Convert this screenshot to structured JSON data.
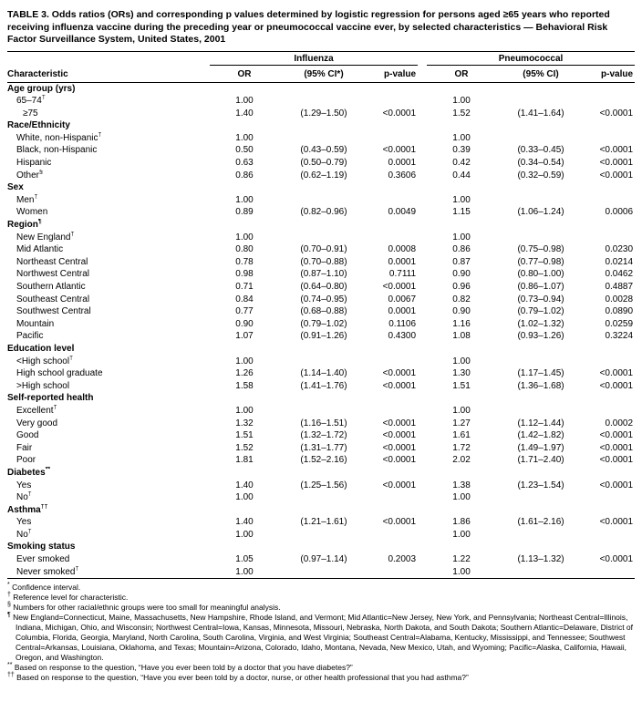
{
  "title": "TABLE 3. Odds ratios (ORs) and corresponding p values determined by logistic regression for persons aged ≥65 years who reported receiving influenza vaccine during the preceding year or pneumococcal vaccine ever, by selected characteristics — Behavioral Risk Factor Surveillance System, United States, 2001",
  "table": {
    "col_groups": [
      {
        "label": "Influenza"
      },
      {
        "label": "Pneumococcal"
      }
    ],
    "columns": [
      "Characteristic",
      "OR",
      "(95% CI*)",
      "p-value",
      "OR",
      "(95% CI)",
      "p-value"
    ],
    "sections": [
      {
        "header": "Age group (yrs)",
        "rows": [
          {
            "label": "65–74",
            "sup": "†",
            "flu": [
              "1.00",
              "",
              ""
            ],
            "pneu": [
              "1.00",
              "",
              ""
            ]
          },
          {
            "label": "≥75",
            "indent": 2,
            "flu": [
              "1.40",
              "(1.29–1.50)",
              "<0.0001"
            ],
            "pneu": [
              "1.52",
              "(1.41–1.64)",
              "<0.0001"
            ]
          }
        ]
      },
      {
        "header": "Race/Ethnicity",
        "rows": [
          {
            "label": "White, non-Hispanic",
            "sup": "†",
            "flu": [
              "1.00",
              "",
              ""
            ],
            "pneu": [
              "1.00",
              "",
              ""
            ]
          },
          {
            "label": "Black, non-Hispanic",
            "flu": [
              "0.50",
              "(0.43–0.59)",
              "<0.0001"
            ],
            "pneu": [
              "0.39",
              "(0.33–0.45)",
              "<0.0001"
            ]
          },
          {
            "label": "Hispanic",
            "flu": [
              "0.63",
              "(0.50–0.79)",
              "0.0001"
            ],
            "pneu": [
              "0.42",
              "(0.34–0.54)",
              "<0.0001"
            ]
          },
          {
            "label": "Other",
            "sup": "§",
            "flu": [
              "0.86",
              "(0.62–1.19)",
              "0.3606"
            ],
            "pneu": [
              "0.44",
              "(0.32–0.59)",
              "<0.0001"
            ]
          }
        ]
      },
      {
        "header": "Sex",
        "rows": [
          {
            "label": "Men",
            "sup": "†",
            "flu": [
              "1.00",
              "",
              ""
            ],
            "pneu": [
              "1.00",
              "",
              ""
            ]
          },
          {
            "label": "Women",
            "flu": [
              "0.89",
              "(0.82–0.96)",
              "0.0049"
            ],
            "pneu": [
              "1.15",
              "(1.06–1.24)",
              "0.0006"
            ]
          }
        ]
      },
      {
        "header": "Region",
        "sup": "¶",
        "rows": [
          {
            "label": "New England",
            "sup": "†",
            "flu": [
              "1.00",
              "",
              ""
            ],
            "pneu": [
              "1.00",
              "",
              ""
            ]
          },
          {
            "label": "Mid Atlantic",
            "flu": [
              "0.80",
              "(0.70–0.91)",
              "0.0008"
            ],
            "pneu": [
              "0.86",
              "(0.75–0.98)",
              "0.0230"
            ]
          },
          {
            "label": "Northeast Central",
            "flu": [
              "0.78",
              "(0.70–0.88)",
              "0.0001"
            ],
            "pneu": [
              "0.87",
              "(0.77–0.98)",
              "0.0214"
            ]
          },
          {
            "label": "Northwest Central",
            "flu": [
              "0.98",
              "(0.87–1.10)",
              "0.7111"
            ],
            "pneu": [
              "0.90",
              "(0.80–1.00)",
              "0.0462"
            ]
          },
          {
            "label": "Southern Atlantic",
            "flu": [
              "0.71",
              "(0.64–0.80)",
              "<0.0001"
            ],
            "pneu": [
              "0.96",
              "(0.86–1.07)",
              "0.4887"
            ]
          },
          {
            "label": "Southeast Central",
            "flu": [
              "0.84",
              "(0.74–0.95)",
              "0.0067"
            ],
            "pneu": [
              "0.82",
              "(0.73–0.94)",
              "0.0028"
            ]
          },
          {
            "label": "Southwest Central",
            "flu": [
              "0.77",
              "(0.68–0.88)",
              "0.0001"
            ],
            "pneu": [
              "0.90",
              "(0.79–1.02)",
              "0.0890"
            ]
          },
          {
            "label": "Mountain",
            "flu": [
              "0.90",
              "(0.79–1.02)",
              "0.1106"
            ],
            "pneu": [
              "1.16",
              "(1.02–1.32)",
              "0.0259"
            ]
          },
          {
            "label": "Pacific",
            "flu": [
              "1.07",
              "(0.91–1.26)",
              "0.4300"
            ],
            "pneu": [
              "1.08",
              "(0.93–1.26)",
              "0.3224"
            ]
          }
        ]
      },
      {
        "header": "Education level",
        "rows": [
          {
            "label": "<High school",
            "sup": "†",
            "flu": [
              "1.00",
              "",
              ""
            ],
            "pneu": [
              "1.00",
              "",
              ""
            ]
          },
          {
            "label": "High school graduate",
            "flu": [
              "1.26",
              "(1.14–1.40)",
              "<0.0001"
            ],
            "pneu": [
              "1.30",
              "(1.17–1.45)",
              "<0.0001"
            ]
          },
          {
            "label": ">High school",
            "flu": [
              "1.58",
              "(1.41–1.76)",
              "<0.0001"
            ],
            "pneu": [
              "1.51",
              "(1.36–1.68)",
              "<0.0001"
            ]
          }
        ]
      },
      {
        "header": "Self-reported health",
        "rows": [
          {
            "label": "Excellent",
            "sup": "†",
            "flu": [
              "1.00",
              "",
              ""
            ],
            "pneu": [
              "1.00",
              "",
              ""
            ]
          },
          {
            "label": "Very good",
            "flu": [
              "1.32",
              "(1.16–1.51)",
              "<0.0001"
            ],
            "pneu": [
              "1.27",
              "(1.12–1.44)",
              "0.0002"
            ]
          },
          {
            "label": "Good",
            "flu": [
              "1.51",
              "(1.32–1.72)",
              "<0.0001"
            ],
            "pneu": [
              "1.61",
              "(1.42–1.82)",
              "<0.0001"
            ]
          },
          {
            "label": "Fair",
            "flu": [
              "1.52",
              "(1.31–1.77)",
              "<0.0001"
            ],
            "pneu": [
              "1.72",
              "(1.49–1.97)",
              "<0.0001"
            ]
          },
          {
            "label": "Poor",
            "flu": [
              "1.81",
              "(1.52–2.16)",
              "<0.0001"
            ],
            "pneu": [
              "2.02",
              "(1.71–2.40)",
              "<0.0001"
            ]
          }
        ]
      },
      {
        "header": "Diabetes",
        "sup": "**",
        "rows": [
          {
            "label": "Yes",
            "flu": [
              "1.40",
              "(1.25–1.56)",
              "<0.0001"
            ],
            "pneu": [
              "1.38",
              "(1.23–1.54)",
              "<0.0001"
            ]
          },
          {
            "label": "No",
            "sup": "†",
            "flu": [
              "1.00",
              "",
              ""
            ],
            "pneu": [
              "1.00",
              "",
              ""
            ]
          }
        ]
      },
      {
        "header": "Asthma",
        "sup": "††",
        "rows": [
          {
            "label": "Yes",
            "flu": [
              "1.40",
              "(1.21–1.61)",
              "<0.0001"
            ],
            "pneu": [
              "1.86",
              "(1.61–2.16)",
              "<0.0001"
            ]
          },
          {
            "label": "No",
            "sup": "†",
            "flu": [
              "1.00",
              "",
              ""
            ],
            "pneu": [
              "1.00",
              "",
              ""
            ]
          }
        ]
      },
      {
        "header": "Smoking status",
        "rows": [
          {
            "label": "Ever smoked",
            "flu": [
              "1.05",
              "(0.97–1.14)",
              "0.2003"
            ],
            "pneu": [
              "1.22",
              "(1.13–1.32)",
              "<0.0001"
            ]
          },
          {
            "label": "Never smoked",
            "sup": "†",
            "flu": [
              "1.00",
              "",
              ""
            ],
            "pneu": [
              "1.00",
              "",
              ""
            ]
          }
        ]
      }
    ]
  },
  "footnotes": [
    {
      "marker": "*",
      "text": "Confidence interval."
    },
    {
      "marker": "†",
      "text": "Reference level for characteristic."
    },
    {
      "marker": "§",
      "text": "Numbers for other racial/ethnic groups were too small for meaningful analysis."
    },
    {
      "marker": "¶",
      "text": "New England=Connecticut, Maine, Massachusetts, New Hampshire, Rhode Island, and Vermont; Mid Atlantic=New Jersey, New York, and Pennsylvania; Northeast Central=Illinois, Indiana, Michigan, Ohio, and Wisconsin; Northwest Central=Iowa, Kansas, Minnesota, Missouri, Nebraska, North Dakota, and South Dakota; Southern Atlantic=Delaware, District of Columbia, Florida, Georgia, Maryland, North Carolina, South Carolina, Virginia, and West Virginia; Southeast Central=Alabama, Kentucky, Mississippi, and Tennessee; Southwest Central=Arkansas, Louisiana, Oklahoma, and Texas; Mountain=Arizona, Colorado, Idaho, Montana, Nevada, New Mexico, Utah, and Wyoming; Pacific=Alaska, California, Hawaii, Oregon, and Washington."
    },
    {
      "marker": "**",
      "text": "Based on response to the question, “Have you ever been told by a doctor that you have diabetes?”"
    },
    {
      "marker": "††",
      "text": "Based on response to the question, “Have you ever been told by a doctor, nurse, or other health professional that you had asthma?”"
    }
  ]
}
